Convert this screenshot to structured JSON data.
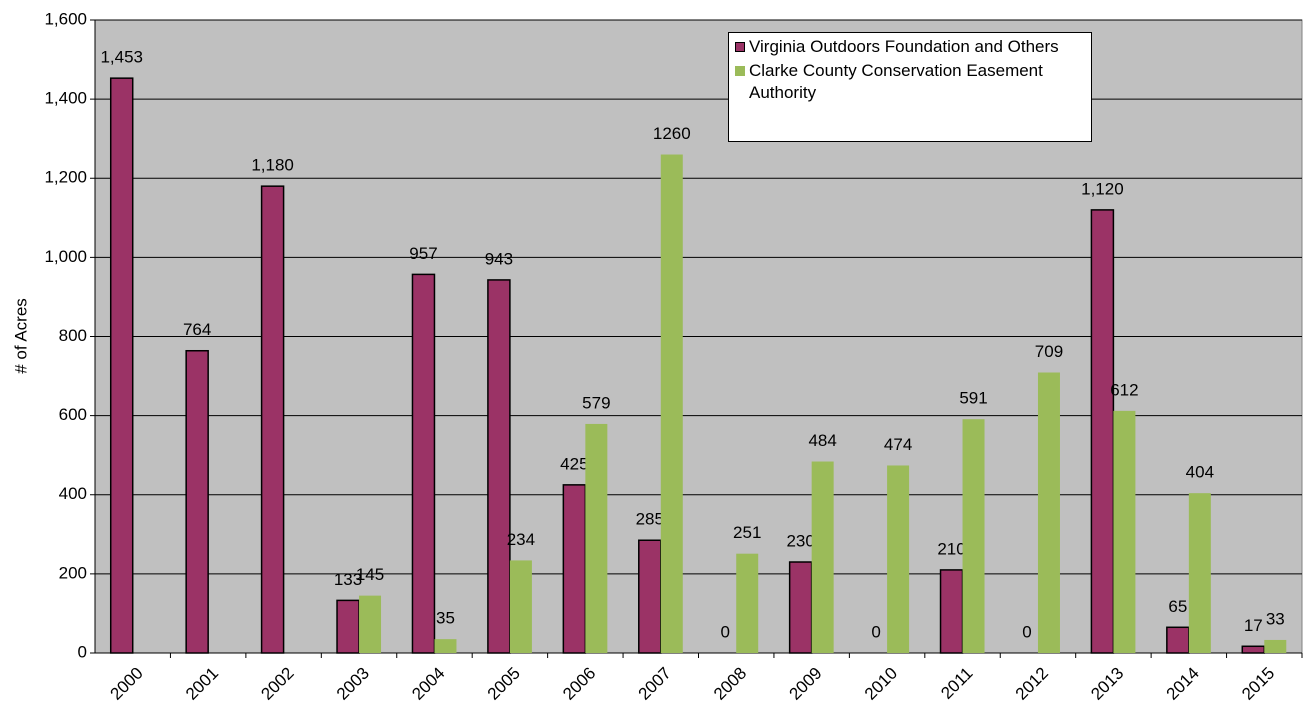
{
  "chart_data": {
    "type": "bar",
    "y_label": "# of Acres",
    "categories": [
      "2000",
      "2001",
      "2002",
      "2003",
      "2004",
      "2005",
      "2006",
      "2007",
      "2008",
      "2009",
      "2010",
      "2011",
      "2012",
      "2013",
      "2014",
      "2015"
    ],
    "series": [
      {
        "name": "Virginia Outdoors Foundation and Others",
        "color": "#9b3366",
        "values": [
          1453,
          764,
          1180,
          133,
          957,
          943,
          425,
          285,
          0,
          230,
          0,
          210,
          0,
          1120,
          65,
          17
        ],
        "value_labels": [
          "1,453",
          "764",
          "1,180",
          "133",
          "957",
          "943",
          "425",
          "285",
          "0",
          "230",
          "0",
          "210",
          "0",
          "1,120",
          "65",
          "17"
        ]
      },
      {
        "name": "Clarke County Conservation Easement Authority",
        "color": "#9bbb59",
        "values": [
          null,
          null,
          null,
          145,
          35,
          234,
          579,
          1260,
          251,
          484,
          474,
          591,
          709,
          612,
          404,
          33
        ]
      }
    ],
    "ylim": [
      0,
      1600
    ],
    "yticks": [
      0,
      200,
      400,
      600,
      800,
      {
        "value": 1000,
        "label": "1,000"
      },
      {
        "value": 1200,
        "label": "1,200"
      },
      {
        "value": 1400,
        "label": "1,400"
      },
      {
        "value": 1600,
        "label": "1,600"
      }
    ],
    "grid": true
  }
}
